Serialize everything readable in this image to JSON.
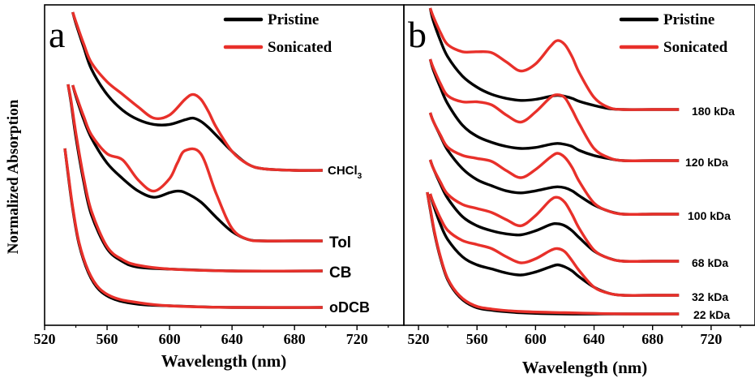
{
  "y_axis_label": "Normalized Absorption",
  "colors": {
    "pristine": "#000000",
    "sonicated": "#e8302a",
    "axis": "#000000"
  },
  "chart_data": [
    {
      "type": "line",
      "panel_label": "a",
      "xlabel": "Wavelength (nm)",
      "ylabel": "Normalized Absorption",
      "xlim": [
        520,
        750
      ],
      "x_ticks": [
        520,
        560,
        600,
        640,
        680,
        720
      ],
      "legend": {
        "position": "top-right",
        "entries": [
          "Pristine",
          "Sonicated"
        ]
      },
      "grid": false,
      "traces": [
        {
          "label": "CHCl3",
          "label_sub": "3",
          "label_main": "CHCl",
          "x": [
            538,
            540,
            545,
            550,
            560,
            570,
            580,
            590,
            600,
            610,
            615,
            620,
            625,
            630,
            640,
            650,
            660,
            680,
            698
          ],
          "pristine": [
            1.0,
            0.93,
            0.78,
            0.64,
            0.48,
            0.38,
            0.32,
            0.29,
            0.29,
            0.32,
            0.33,
            0.31,
            0.27,
            0.22,
            0.12,
            0.04,
            0.01,
            0.0,
            0.0
          ],
          "sonicated": [
            1.0,
            0.94,
            0.8,
            0.68,
            0.56,
            0.48,
            0.4,
            0.33,
            0.35,
            0.45,
            0.48,
            0.45,
            0.37,
            0.27,
            0.12,
            0.04,
            0.01,
            0.0,
            0.0
          ]
        },
        {
          "label": "Tol",
          "x": [
            538,
            540,
            545,
            550,
            560,
            570,
            580,
            590,
            600,
            605,
            610,
            620,
            630,
            640,
            650,
            660,
            680,
            698
          ],
          "pristine": [
            1.0,
            0.93,
            0.78,
            0.66,
            0.5,
            0.4,
            0.32,
            0.28,
            0.31,
            0.32,
            0.31,
            0.25,
            0.15,
            0.06,
            0.01,
            0.0,
            0.0,
            0.0
          ],
          "sonicated": [
            1.0,
            0.94,
            0.8,
            0.68,
            0.56,
            0.52,
            0.39,
            0.32,
            0.4,
            0.5,
            0.58,
            0.56,
            0.3,
            0.08,
            0.01,
            0.0,
            0.0,
            0.0
          ]
        },
        {
          "label": "CB",
          "x": [
            535,
            537,
            540,
            545,
            550,
            560,
            570,
            580,
            600,
            640,
            698
          ],
          "pristine": [
            1.0,
            0.9,
            0.72,
            0.48,
            0.3,
            0.12,
            0.05,
            0.02,
            0.01,
            0.0,
            0.0
          ],
          "sonicated": [
            1.0,
            0.91,
            0.74,
            0.5,
            0.32,
            0.13,
            0.06,
            0.03,
            0.01,
            0.0,
            0.0
          ]
        },
        {
          "label": "oDCB",
          "x": [
            533,
            535,
            538,
            542,
            548,
            555,
            565,
            580,
            600,
            640,
            698
          ],
          "pristine": [
            1.0,
            0.84,
            0.62,
            0.4,
            0.22,
            0.11,
            0.05,
            0.02,
            0.01,
            0.0,
            0.0
          ],
          "sonicated": [
            1.0,
            0.85,
            0.63,
            0.41,
            0.23,
            0.12,
            0.06,
            0.03,
            0.01,
            0.0,
            0.0
          ]
        }
      ]
    },
    {
      "type": "line",
      "panel_label": "b",
      "xlabel": "Wavelength (nm)",
      "ylabel": "",
      "xlim": [
        510,
        750
      ],
      "x_ticks": [
        520,
        560,
        600,
        640,
        680,
        720
      ],
      "legend": {
        "position": "top-right",
        "entries": [
          "Pristine",
          "Sonicated"
        ]
      },
      "grid": false,
      "traces": [
        {
          "label": "180 kDa",
          "x": [
            528,
            530,
            535,
            540,
            550,
            560,
            570,
            580,
            590,
            600,
            610,
            615,
            620,
            625,
            630,
            640,
            650,
            660,
            680,
            698
          ],
          "pristine": [
            1.0,
            0.88,
            0.68,
            0.52,
            0.33,
            0.22,
            0.15,
            0.11,
            0.09,
            0.1,
            0.13,
            0.14,
            0.13,
            0.11,
            0.08,
            0.04,
            0.01,
            0.0,
            0.0,
            0.0
          ],
          "sonicated": [
            1.0,
            0.92,
            0.76,
            0.64,
            0.57,
            0.57,
            0.56,
            0.47,
            0.38,
            0.45,
            0.62,
            0.68,
            0.64,
            0.52,
            0.36,
            0.12,
            0.02,
            0.0,
            0.0,
            0.0
          ]
        },
        {
          "label": "120 kDa",
          "x": [
            528,
            530,
            535,
            540,
            550,
            560,
            570,
            580,
            590,
            600,
            610,
            615,
            620,
            625,
            630,
            640,
            650,
            660,
            680,
            698
          ],
          "pristine": [
            1.0,
            0.9,
            0.72,
            0.56,
            0.35,
            0.24,
            0.18,
            0.14,
            0.12,
            0.13,
            0.16,
            0.17,
            0.16,
            0.14,
            0.1,
            0.05,
            0.02,
            0.0,
            0.0,
            0.0
          ],
          "sonicated": [
            1.0,
            0.92,
            0.76,
            0.64,
            0.58,
            0.58,
            0.55,
            0.45,
            0.38,
            0.48,
            0.62,
            0.65,
            0.62,
            0.5,
            0.36,
            0.12,
            0.03,
            0.0,
            0.0,
            0.0
          ]
        },
        {
          "label": "100 kDa",
          "x": [
            528,
            530,
            535,
            540,
            550,
            560,
            570,
            580,
            590,
            600,
            610,
            615,
            620,
            625,
            630,
            640,
            650,
            660,
            680,
            698
          ],
          "pristine": [
            1.0,
            0.92,
            0.77,
            0.63,
            0.45,
            0.34,
            0.28,
            0.23,
            0.21,
            0.23,
            0.26,
            0.27,
            0.26,
            0.23,
            0.18,
            0.09,
            0.03,
            0.0,
            0.0,
            0.0
          ],
          "sonicated": [
            1.0,
            0.92,
            0.78,
            0.66,
            0.58,
            0.55,
            0.52,
            0.43,
            0.36,
            0.44,
            0.56,
            0.6,
            0.56,
            0.46,
            0.32,
            0.11,
            0.03,
            0.0,
            0.0,
            0.0
          ]
        },
        {
          "label": "68 kDa",
          "x": [
            528,
            530,
            535,
            540,
            550,
            560,
            570,
            580,
            590,
            600,
            610,
            615,
            620,
            625,
            630,
            640,
            650,
            660,
            680,
            698
          ],
          "pristine": [
            1.0,
            0.92,
            0.76,
            0.62,
            0.44,
            0.35,
            0.3,
            0.27,
            0.26,
            0.3,
            0.36,
            0.37,
            0.35,
            0.3,
            0.23,
            0.1,
            0.03,
            0.0,
            0.0,
            0.0
          ],
          "sonicated": [
            1.0,
            0.92,
            0.78,
            0.66,
            0.56,
            0.52,
            0.48,
            0.41,
            0.35,
            0.45,
            0.6,
            0.63,
            0.58,
            0.46,
            0.32,
            0.11,
            0.03,
            0.0,
            0.0,
            0.0
          ]
        },
        {
          "label": "32 kDa",
          "x": [
            528,
            530,
            535,
            540,
            550,
            560,
            570,
            580,
            590,
            600,
            610,
            615,
            620,
            625,
            630,
            640,
            650,
            660,
            680,
            698
          ],
          "pristine": [
            1.0,
            0.9,
            0.7,
            0.55,
            0.38,
            0.3,
            0.26,
            0.22,
            0.2,
            0.23,
            0.28,
            0.3,
            0.28,
            0.24,
            0.18,
            0.08,
            0.02,
            0.0,
            0.0,
            0.0
          ],
          "sonicated": [
            1.0,
            0.92,
            0.76,
            0.64,
            0.54,
            0.5,
            0.46,
            0.38,
            0.32,
            0.36,
            0.44,
            0.46,
            0.43,
            0.34,
            0.24,
            0.08,
            0.02,
            0.0,
            0.0,
            0.0
          ]
        },
        {
          "label": "22 kDa",
          "x": [
            526,
            528,
            531,
            535,
            540,
            548,
            558,
            570,
            590,
            620,
            660,
            698
          ],
          "pristine": [
            1.0,
            0.86,
            0.66,
            0.46,
            0.28,
            0.14,
            0.06,
            0.03,
            0.01,
            0.0,
            0.0,
            0.0
          ],
          "sonicated": [
            1.0,
            0.87,
            0.67,
            0.47,
            0.29,
            0.15,
            0.07,
            0.04,
            0.02,
            0.01,
            0.0,
            0.0
          ]
        }
      ]
    }
  ]
}
